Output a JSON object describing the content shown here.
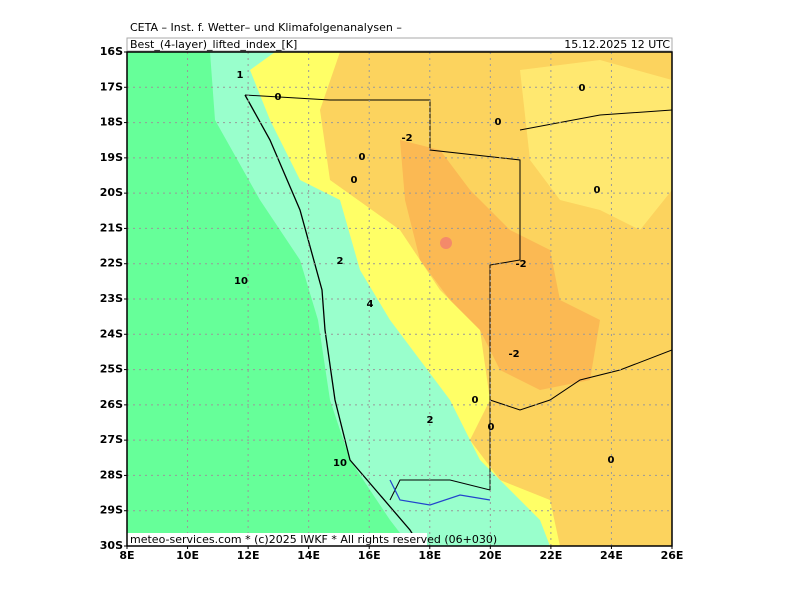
{
  "header": {
    "title": "CETA – Inst. f. Wetter– und Klimafolgenanalysen –",
    "subtitle": "Best_(4-layer)_lifted_index_[K]",
    "valid_time": "15.12.2025 12 UTC"
  },
  "footer": "meteo-services.com * (c)2025 IWKF * All rights reserved (06+030)",
  "y_axis": [
    "16S",
    "17S",
    "18S",
    "19S",
    "20S",
    "21S",
    "22S",
    "23S",
    "24S",
    "25S",
    "26S",
    "27S",
    "28S",
    "29S",
    "30S"
  ],
  "x_axis": [
    "8E",
    "10E",
    "12E",
    "14E",
    "16E",
    "18E",
    "20E",
    "22E",
    "24E",
    "26E"
  ],
  "contour_labels": [
    "1",
    "0",
    "0",
    "0",
    "-2",
    "0",
    "0",
    "0",
    "-2",
    "2",
    "10",
    "4",
    "-2",
    "0",
    "0",
    "2",
    "0",
    "10"
  ]
}
